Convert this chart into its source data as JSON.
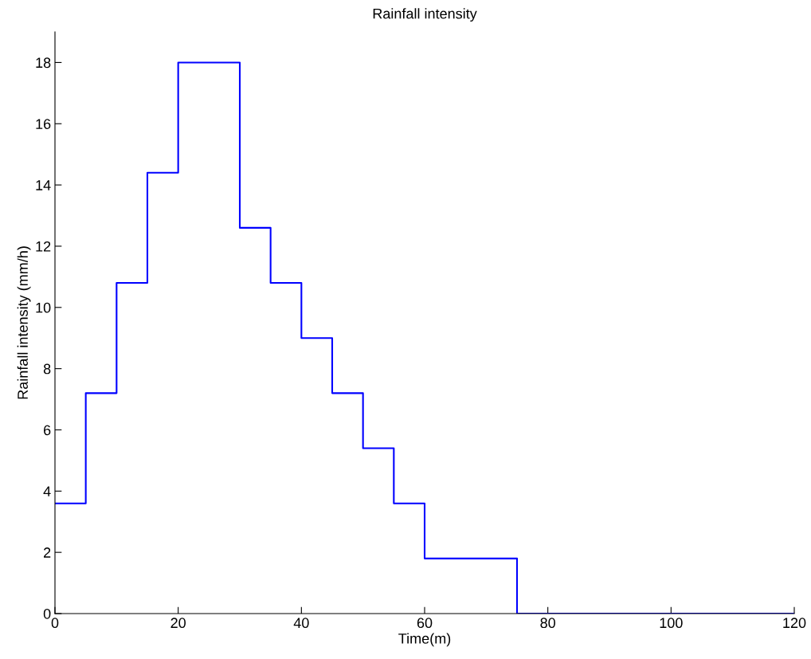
{
  "chart_data": {
    "type": "step",
    "title": "Rainfall intensity",
    "xlabel": "Time(m)",
    "ylabel": "Rainfall intensity (mm/h)",
    "x": [
      0,
      5,
      10,
      15,
      20,
      30,
      35,
      40,
      45,
      50,
      55,
      60,
      75,
      120
    ],
    "series": [
      {
        "color": "#0000ff",
        "values": [
          3.6,
          7.2,
          10.8,
          14.4,
          18,
          12.6,
          10.8,
          9,
          7.2,
          5.4,
          3.6,
          1.8,
          0,
          0
        ]
      }
    ],
    "xlim": [
      0,
      120
    ],
    "ylim": [
      0,
      19
    ],
    "xticks": [
      0,
      20,
      40,
      60,
      80,
      100,
      120
    ],
    "yticks": [
      0,
      2,
      4,
      6,
      8,
      10,
      12,
      14,
      16,
      18
    ],
    "grid": false,
    "legend": false
  }
}
